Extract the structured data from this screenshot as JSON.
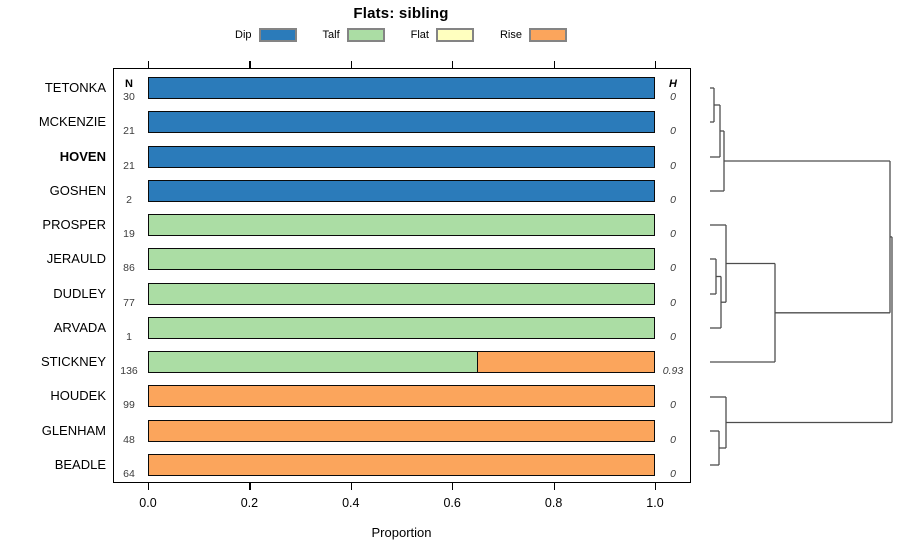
{
  "title": "Flats: sibling",
  "columns": {
    "n": "N",
    "h": "H"
  },
  "axis": {
    "label": "Proportion",
    "ticks": [
      "0.0",
      "0.2",
      "0.4",
      "0.6",
      "0.8",
      "1.0"
    ],
    "tick_values": [
      0.0,
      0.2,
      0.4,
      0.6,
      0.8,
      1.0
    ]
  },
  "colors": {
    "Dip": "#2B7BBA",
    "Talf": "#ABDDA4",
    "Flat": "#FFFFBF",
    "Rise": "#FBA55C",
    "bar_border": "#0A0A0A",
    "dendrogram_stroke": "#4D4D4D"
  },
  "legend": {
    "items": [
      {
        "label": "Dip",
        "color": "#2B7BBA"
      },
      {
        "label": "Talf",
        "color": "#ABDDA4"
      },
      {
        "label": "Flat",
        "color": "#FFFFBF"
      },
      {
        "label": "Rise",
        "color": "#FBA55C"
      }
    ]
  },
  "chart_data": {
    "type": "bar",
    "orientation": "horizontal",
    "stacked": true,
    "title": "Flats: sibling",
    "xlabel": "Proportion",
    "xlim": [
      0,
      1
    ],
    "x_ticks": [
      "0.0",
      "0.2",
      "0.4",
      "0.6",
      "0.8",
      "1.0"
    ],
    "legend_entries": [
      "Dip",
      "Talf",
      "Flat",
      "Rise"
    ],
    "rows": [
      {
        "name": "TETONKA",
        "bold": false,
        "n": "30",
        "h": "0",
        "segments": [
          {
            "category": "Dip",
            "value": 1.0
          }
        ]
      },
      {
        "name": "MCKENZIE",
        "bold": false,
        "n": "21",
        "h": "0",
        "segments": [
          {
            "category": "Dip",
            "value": 1.0
          }
        ]
      },
      {
        "name": "HOVEN",
        "bold": true,
        "n": "21",
        "h": "0",
        "segments": [
          {
            "category": "Dip",
            "value": 1.0
          }
        ]
      },
      {
        "name": "GOSHEN",
        "bold": false,
        "n": "2",
        "h": "0",
        "segments": [
          {
            "category": "Dip",
            "value": 1.0
          }
        ]
      },
      {
        "name": "PROSPER",
        "bold": false,
        "n": "19",
        "h": "0",
        "segments": [
          {
            "category": "Talf",
            "value": 1.0
          }
        ]
      },
      {
        "name": "JERAULD",
        "bold": false,
        "n": "86",
        "h": "0",
        "segments": [
          {
            "category": "Talf",
            "value": 1.0
          }
        ]
      },
      {
        "name": "DUDLEY",
        "bold": false,
        "n": "77",
        "h": "0",
        "segments": [
          {
            "category": "Talf",
            "value": 1.0
          }
        ]
      },
      {
        "name": "ARVADA",
        "bold": false,
        "n": "1",
        "h": "0",
        "segments": [
          {
            "category": "Talf",
            "value": 1.0
          }
        ]
      },
      {
        "name": "STICKNEY",
        "bold": false,
        "n": "136",
        "h": "0.93",
        "segments": [
          {
            "category": "Talf",
            "value": 0.65
          },
          {
            "category": "Rise",
            "value": 0.35
          }
        ]
      },
      {
        "name": "HOUDEK",
        "bold": false,
        "n": "99",
        "h": "0",
        "segments": [
          {
            "category": "Rise",
            "value": 1.0
          }
        ]
      },
      {
        "name": "GLENHAM",
        "bold": false,
        "n": "48",
        "h": "0",
        "segments": [
          {
            "category": "Rise",
            "value": 1.0
          }
        ]
      },
      {
        "name": "BEADLE",
        "bold": false,
        "n": "64",
        "h": "0",
        "segments": [
          {
            "category": "Rise",
            "value": 1.0
          }
        ]
      }
    ]
  },
  "dendrogram": {
    "stroke": "#4D4D4D",
    "segments": [
      [
        710,
        88,
        714,
        88
      ],
      [
        710,
        122,
        714,
        122
      ],
      [
        714,
        88,
        714,
        122
      ],
      [
        714,
        105,
        720,
        105
      ],
      [
        710,
        157,
        720,
        157
      ],
      [
        720,
        105,
        720,
        157
      ],
      [
        720,
        131,
        724,
        131
      ],
      [
        710,
        191,
        724,
        191
      ],
      [
        724,
        131,
        724,
        191
      ],
      [
        724,
        161,
        890,
        161
      ],
      [
        710,
        259,
        716,
        259
      ],
      [
        710,
        294,
        716,
        294
      ],
      [
        716,
        259,
        716,
        294
      ],
      [
        716,
        276.5,
        721,
        276.5
      ],
      [
        710,
        328,
        721,
        328
      ],
      [
        721,
        276.5,
        721,
        328
      ],
      [
        710,
        225,
        726,
        225
      ],
      [
        721,
        302.2,
        726,
        302.2
      ],
      [
        726,
        225,
        726,
        302.2
      ],
      [
        726,
        263.5,
        775,
        263.5
      ],
      [
        710,
        362,
        775,
        362
      ],
      [
        775,
        263.5,
        775,
        362
      ],
      [
        775,
        312.8,
        890,
        312.8
      ],
      [
        710,
        431,
        719,
        431
      ],
      [
        710,
        465,
        719,
        465
      ],
      [
        719,
        431,
        719,
        465
      ],
      [
        719,
        448,
        726,
        448
      ],
      [
        710,
        397,
        726,
        397
      ],
      [
        726,
        397,
        726,
        448
      ],
      [
        726,
        422.5,
        892,
        422.5
      ],
      [
        890,
        161,
        890,
        312.8
      ],
      [
        890,
        236.9,
        892,
        236.9
      ],
      [
        892,
        236.9,
        892,
        422.5
      ]
    ]
  }
}
